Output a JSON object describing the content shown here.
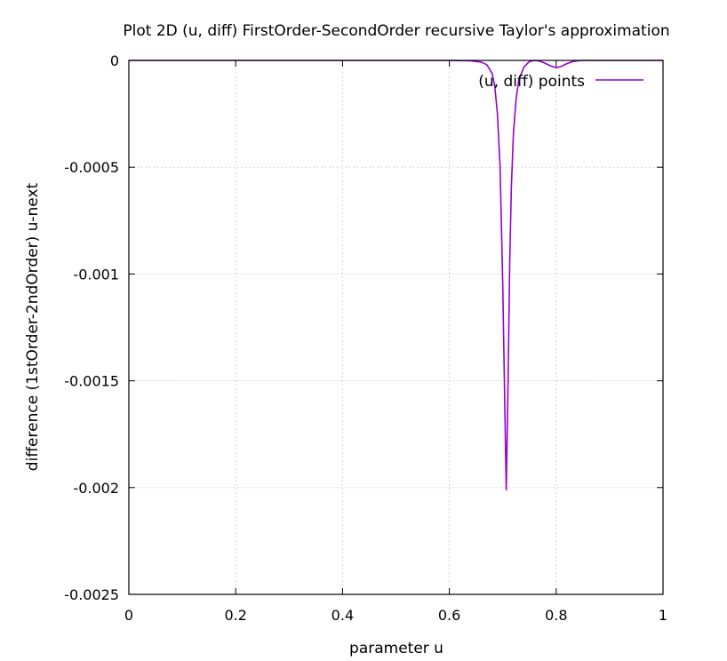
{
  "chart_data": {
    "type": "line",
    "title": "Plot 2D (u, diff) FirstOrder-SecondOrder recursive Taylor's approximation",
    "xlabel": "parameter u",
    "ylabel": "difference (1stOrder-2ndOrder) u-next",
    "xlim": [
      0,
      1
    ],
    "ylim": [
      -0.0025,
      0
    ],
    "xticks": [
      {
        "value": 0,
        "label": "0"
      },
      {
        "value": 0.2,
        "label": "0.2"
      },
      {
        "value": 0.4,
        "label": "0.4"
      },
      {
        "value": 0.6,
        "label": "0.6"
      },
      {
        "value": 0.8,
        "label": "0.8"
      },
      {
        "value": 1,
        "label": "1"
      }
    ],
    "yticks": [
      {
        "value": 0,
        "label": "0"
      },
      {
        "value": -0.0005,
        "label": "-0.0005"
      },
      {
        "value": -0.001,
        "label": "-0.001"
      },
      {
        "value": -0.0015,
        "label": "-0.0015"
      },
      {
        "value": -0.002,
        "label": "-0.002"
      },
      {
        "value": -0.0025,
        "label": "-0.0025"
      }
    ],
    "grid": true,
    "legend_position": "top-right",
    "series": [
      {
        "name": "(u, diff) points",
        "color": "#9400d3",
        "x": [
          0,
          0.1,
          0.2,
          0.3,
          0.4,
          0.5,
          0.6,
          0.64,
          0.66,
          0.67,
          0.68,
          0.685,
          0.69,
          0.695,
          0.7,
          0.703,
          0.7065,
          0.71,
          0.713,
          0.716,
          0.72,
          0.725,
          0.73,
          0.74,
          0.75,
          0.76,
          0.77,
          0.78,
          0.79,
          0.8,
          0.81,
          0.82,
          0.83,
          0.84,
          0.85,
          0.9,
          1
        ],
        "y": [
          0,
          0,
          0,
          0,
          0,
          0,
          0,
          -2e-06,
          -8e-06,
          -2e-05,
          -6e-05,
          -0.00012,
          -0.00025,
          -0.0005,
          -0.00105,
          -0.0015,
          -0.00201,
          -0.0015,
          -0.00095,
          -0.0006,
          -0.00034,
          -0.00018,
          -9e-05,
          -3e-05,
          -5e-06,
          0,
          -4e-06,
          -1.4e-05,
          -2.6e-05,
          -3.4e-05,
          -2.8e-05,
          -1.5e-05,
          -6e-06,
          -2e-06,
          0,
          0,
          0
        ]
      }
    ]
  }
}
